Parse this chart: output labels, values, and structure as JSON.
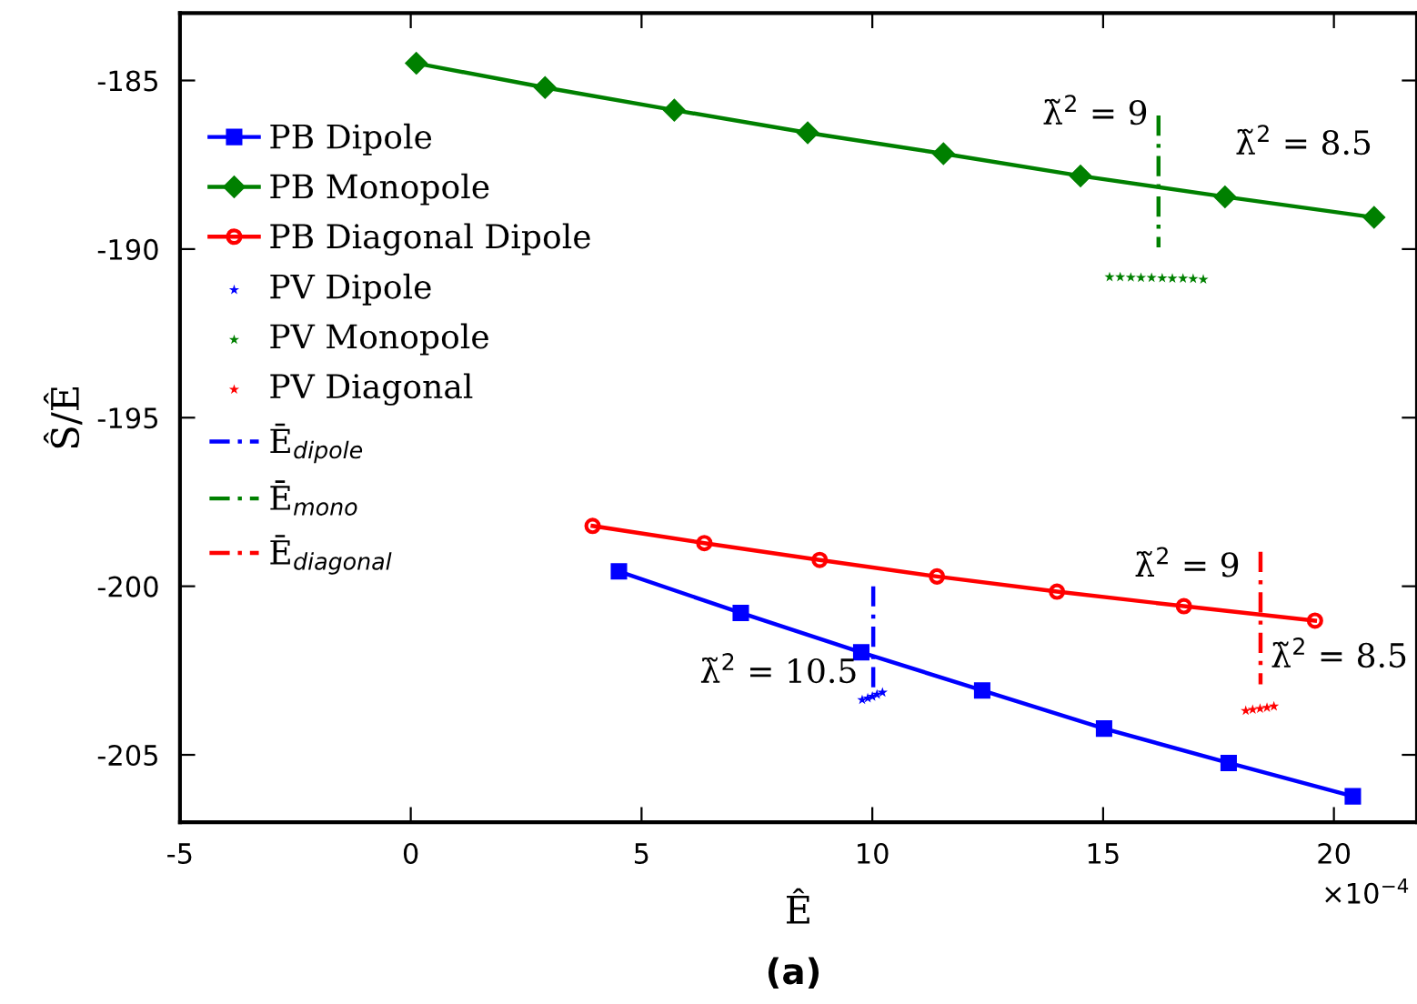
{
  "chart_data": {
    "type": "line",
    "xlabel": "Ê",
    "ylabel": "Ŝ/Ê",
    "xlim": [
      -5,
      21.8
    ],
    "ylim": [
      -207,
      -183
    ],
    "xticks": [
      -5,
      0,
      5,
      10,
      15,
      20
    ],
    "yticks": [
      -185,
      -190,
      -195,
      -200,
      -205
    ],
    "grid": false,
    "legend": "top left",
    "series": [
      {
        "name": "PB Dipole",
        "color": "#0000ff",
        "marker": "square",
        "line_style": "solid",
        "x": [
          4.51,
          7.15,
          9.76,
          12.38,
          15.02,
          17.72,
          20.41
        ],
        "values": [
          -199.56,
          -200.79,
          -201.96,
          -203.09,
          -204.22,
          -205.24,
          -206.23
        ]
      },
      {
        "name": "PB Monopole",
        "color": "#008000",
        "marker": "diamond",
        "line_style": "solid",
        "x": [
          0.12,
          2.91,
          5.71,
          8.6,
          11.54,
          14.51,
          17.64,
          20.87
        ],
        "values": [
          -184.49,
          -185.21,
          -185.88,
          -186.55,
          -187.17,
          -187.83,
          -188.45,
          -189.06
        ]
      },
      {
        "name": "PB Diagonal Dipole",
        "color": "#ff0000",
        "marker": "circle",
        "line_style": "solid",
        "x": [
          3.94,
          6.36,
          8.86,
          11.4,
          14.0,
          16.75,
          19.59
        ],
        "values": [
          -198.21,
          -198.72,
          -199.22,
          -199.71,
          -200.16,
          -200.59,
          -201.02
        ]
      },
      {
        "name": "PV Dipole",
        "type": "scatter",
        "color": "#0000ff",
        "marker": "star",
        "x": [
          9.78,
          9.9,
          10.0,
          10.1,
          10.22
        ],
        "values": [
          -203.37,
          -203.32,
          -203.27,
          -203.21,
          -203.15
        ]
      },
      {
        "name": "PV Monopole",
        "type": "scatter",
        "color": "#008000",
        "marker": "star",
        "x": [
          15.14,
          15.37,
          15.6,
          15.82,
          16.05,
          16.28,
          16.5,
          16.73,
          16.95,
          17.17
        ],
        "values": [
          -190.83,
          -190.83,
          -190.84,
          -190.85,
          -190.85,
          -190.86,
          -190.87,
          -190.87,
          -190.88,
          -190.9
        ]
      },
      {
        "name": "PV Diagonal",
        "type": "scatter",
        "color": "#ff0000",
        "marker": "star",
        "x": [
          18.09,
          18.24,
          18.4,
          18.55,
          18.7
        ],
        "values": [
          -203.69,
          -203.66,
          -203.63,
          -203.6,
          -203.56
        ]
      },
      {
        "name": "Ē$_{dipole}$",
        "color": "#0000ff",
        "marker": "none",
        "line_style": "dashed",
        "x": [
          10.02,
          10.02
        ],
        "values": [
          -200.0,
          -203.07
        ]
      },
      {
        "name": "Ē$_{mono}$",
        "color": "#008000",
        "marker": "none",
        "line_style": "dashed",
        "x": [
          16.2,
          16.2
        ],
        "values": [
          -186.04,
          -189.95
        ]
      },
      {
        "name": "Ē$_{diagonal}$",
        "color": "#ff0000",
        "marker": "none",
        "line_style": "dashed",
        "x": [
          18.41,
          18.41
        ],
        "values": [
          -198.98,
          -202.91
        ]
      }
    ],
    "annotations": [
      {
        "text": "λ̃$^{2}$ = 9",
        "x": 16.2,
        "y": -186.04
      },
      {
        "text": "λ̃$^{2}$ = 8.5",
        "x": 17.64,
        "y": -188.45
      },
      {
        "text": "λ̃$^{2}$ = 10.5",
        "x": 10.02,
        "y": -203.07
      },
      {
        "text": "λ̃$^{2}$ = 9",
        "x": 18.41,
        "y": -198.98
      },
      {
        "text": "λ̃$^{2}$ = 8.5",
        "x": 18.41,
        "y": -202.91
      },
      "×10$^{−4}$",
      "(a)"
    ]
  }
}
